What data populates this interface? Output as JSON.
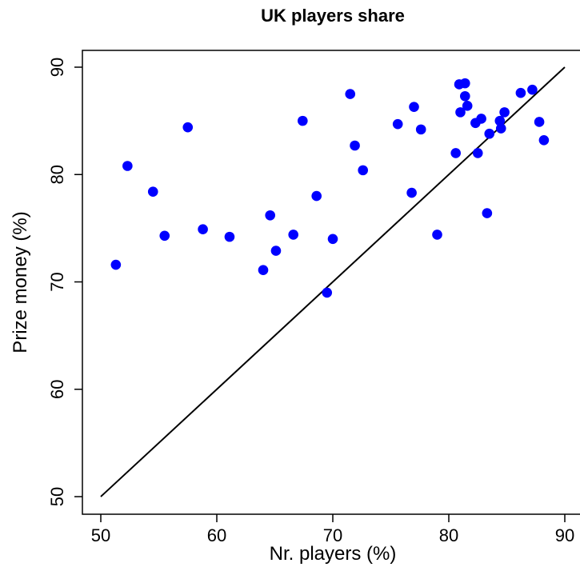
{
  "chart_data": {
    "type": "scatter",
    "title": "UK players share",
    "xlabel": "Nr. players (%)",
    "ylabel": "Prize money (%)",
    "xlim": [
      50,
      90
    ],
    "ylim": [
      50,
      90
    ],
    "xticks": [
      50,
      60,
      70,
      80,
      90
    ],
    "yticks": [
      50,
      60,
      70,
      80,
      90
    ],
    "grid": false,
    "legend": "none",
    "point_color": "#0000ff",
    "reference_line": {
      "from": [
        50,
        50
      ],
      "to": [
        90,
        90
      ],
      "color": "#000000"
    },
    "points": [
      [
        51.3,
        71.6
      ],
      [
        52.3,
        80.8
      ],
      [
        54.5,
        78.4
      ],
      [
        55.5,
        74.3
      ],
      [
        57.5,
        84.4
      ],
      [
        58.8,
        74.9
      ],
      [
        61.1,
        74.2
      ],
      [
        64.0,
        71.1
      ],
      [
        64.6,
        76.2
      ],
      [
        65.1,
        72.9
      ],
      [
        66.6,
        74.4
      ],
      [
        67.4,
        85.0
      ],
      [
        68.6,
        78.0
      ],
      [
        69.5,
        69.0
      ],
      [
        70.0,
        74.0
      ],
      [
        71.5,
        87.5
      ],
      [
        71.9,
        82.7
      ],
      [
        72.6,
        80.4
      ],
      [
        75.6,
        84.7
      ],
      [
        76.8,
        78.3
      ],
      [
        77.0,
        86.3
      ],
      [
        77.6,
        84.2
      ],
      [
        79.0,
        74.4
      ],
      [
        80.6,
        82.0
      ],
      [
        80.9,
        88.4
      ],
      [
        81.0,
        85.8
      ],
      [
        81.4,
        88.5
      ],
      [
        81.4,
        87.3
      ],
      [
        81.6,
        86.4
      ],
      [
        82.3,
        84.8
      ],
      [
        82.5,
        82.0
      ],
      [
        82.8,
        85.2
      ],
      [
        83.3,
        76.4
      ],
      [
        83.5,
        83.8
      ],
      [
        84.4,
        85.0
      ],
      [
        84.5,
        84.3
      ],
      [
        84.8,
        85.8
      ],
      [
        86.2,
        87.6
      ],
      [
        87.2,
        87.9
      ],
      [
        87.8,
        84.9
      ],
      [
        88.2,
        83.2
      ]
    ]
  }
}
